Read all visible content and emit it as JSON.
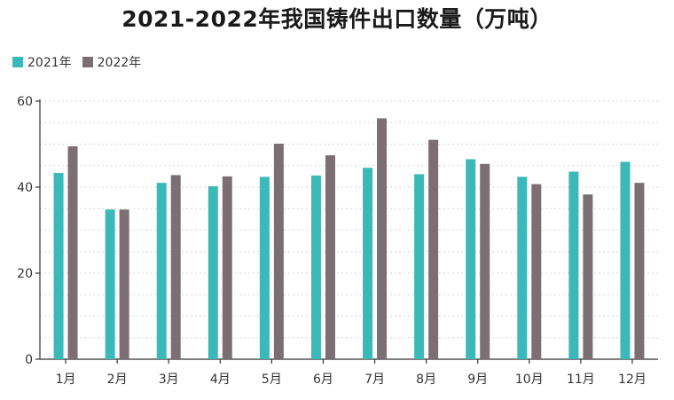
{
  "chart_data": {
    "type": "bar",
    "title": "2021-2022年我国铸件出口数量（万吨）",
    "categories": [
      "1月",
      "2月",
      "3月",
      "4月",
      "5月",
      "6月",
      "7月",
      "8月",
      "9月",
      "10月",
      "11月",
      "12月"
    ],
    "series": [
      {
        "name": "2021年",
        "color": "#3bb8b8",
        "values": [
          43.3,
          34.8,
          41.0,
          40.2,
          42.4,
          42.7,
          44.5,
          43.0,
          46.5,
          42.4,
          43.6,
          45.9
        ]
      },
      {
        "name": "2022年",
        "color": "#7b6f74",
        "values": [
          49.5,
          34.8,
          42.8,
          42.5,
          50.1,
          47.4,
          56.0,
          51.0,
          45.4,
          40.7,
          38.3,
          41.0
        ]
      }
    ],
    "ylim": [
      0,
      60
    ],
    "yticks": [
      0,
      20,
      40,
      60
    ],
    "xlabel": "",
    "ylabel": "",
    "grid": "horizontal dotted",
    "legend": "top-left"
  }
}
